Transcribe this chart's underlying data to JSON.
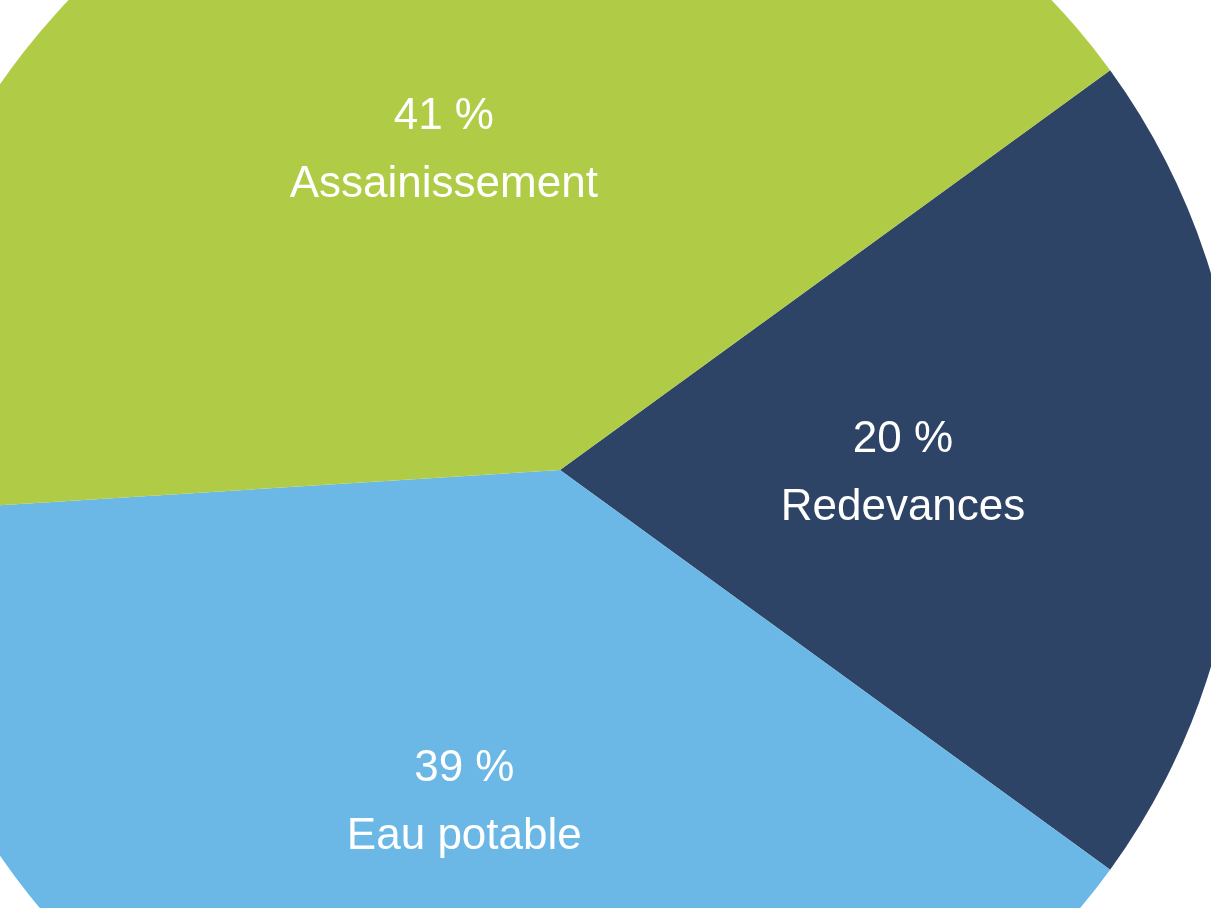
{
  "chart_data": {
    "type": "pie",
    "categories": [
      "Redevances",
      "Eau potable",
      "Assainissement"
    ],
    "values": [
      20,
      39,
      41
    ],
    "value_labels": [
      "20 %",
      "39 %",
      "41 %"
    ],
    "colors": [
      "#2e4466",
      "#6bb8e6",
      "#b0cb45"
    ]
  }
}
